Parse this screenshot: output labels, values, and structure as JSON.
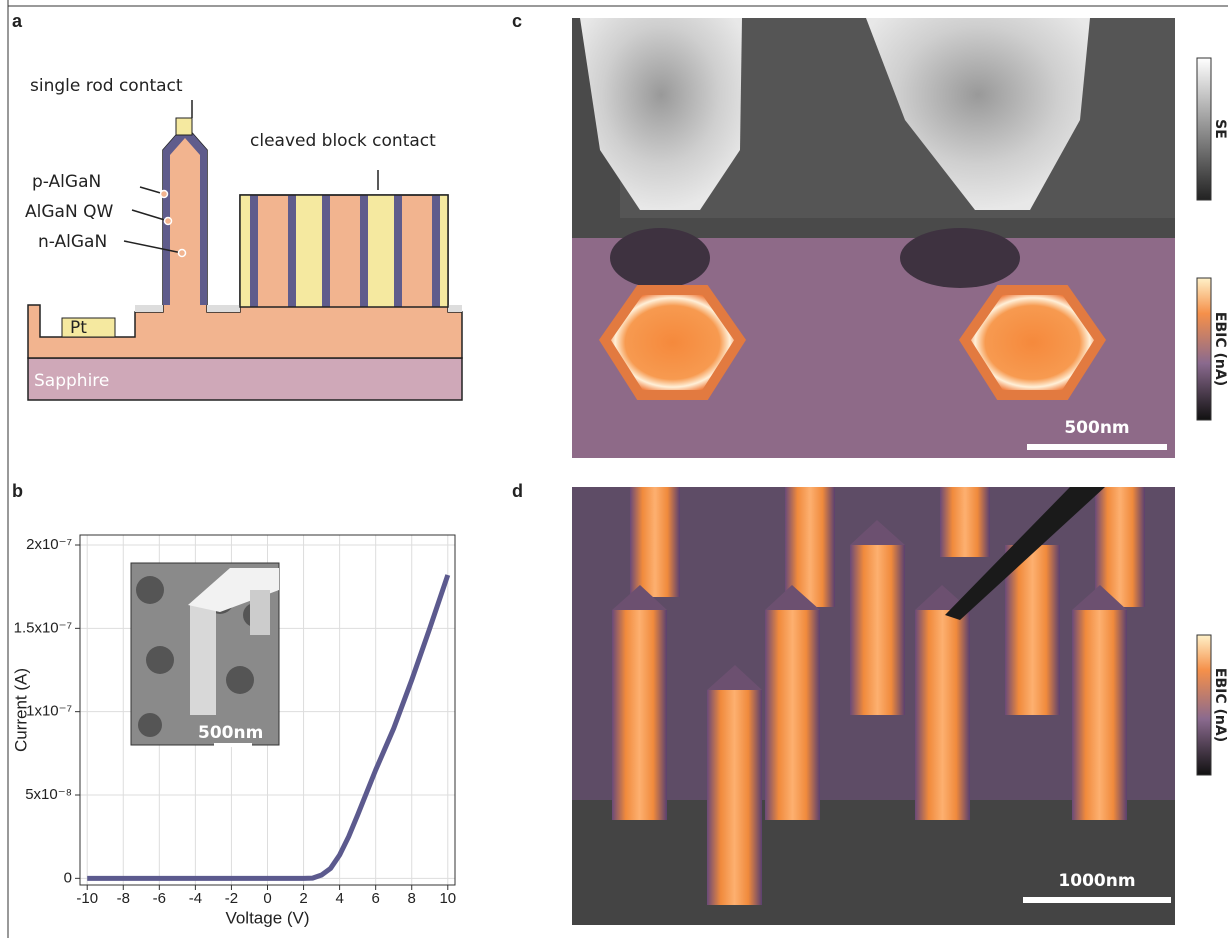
{
  "panel_a": {
    "label": "a",
    "callouts": [
      "single rod contact",
      "cleaved block contact",
      "p-AlGaN",
      "AlGaN QW",
      "n-AlGaN"
    ],
    "pt_label": "Pt",
    "substrate_label": "Sapphire"
  },
  "panel_b": {
    "label": "b",
    "inset_scale_bar": "500nm"
  },
  "chart_data": {
    "type": "line",
    "xlabel": "Voltage (V)",
    "ylabel": "Current (A)",
    "x": [
      -10,
      -8,
      -6,
      -4,
      -2,
      0,
      2,
      2.5,
      3,
      3.5,
      4,
      4.5,
      5,
      6,
      7,
      8,
      9,
      10
    ],
    "values": [
      0,
      0,
      0,
      0,
      0,
      0,
      0,
      1e-10,
      2e-09,
      6e-09,
      1.4e-08,
      2.5e-08,
      3.8e-08,
      6.5e-08,
      9e-08,
      1.19e-07,
      1.5e-07,
      1.82e-07
    ],
    "color": "#5c5a8e",
    "xlim": [
      -10.4,
      10.4
    ],
    "xticks": [
      -10,
      -8,
      -6,
      -4,
      -2,
      0,
      2,
      4,
      6,
      8,
      10
    ],
    "ylim": [
      -4e-09,
      2.06e-07
    ],
    "yticks": [
      0,
      {
        "value": 5e-08,
        "label": "5x10⁻⁸"
      },
      {
        "value": 1e-07,
        "label": "1x10⁻⁷"
      },
      {
        "value": 1.5e-07,
        "label": "1.5x10⁻⁷"
      },
      {
        "value": 2e-07,
        "label": "2x10⁻⁷"
      }
    ],
    "grid": true
  },
  "panel_c": {
    "label": "c",
    "se_colorbar": "SE",
    "ebic_colorbar": "EBIC (nA)",
    "scale_bar": "500nm"
  },
  "panel_d": {
    "label": "d",
    "ebic_colorbar": "EBIC (nA)",
    "scale_bar": "1000nm"
  }
}
